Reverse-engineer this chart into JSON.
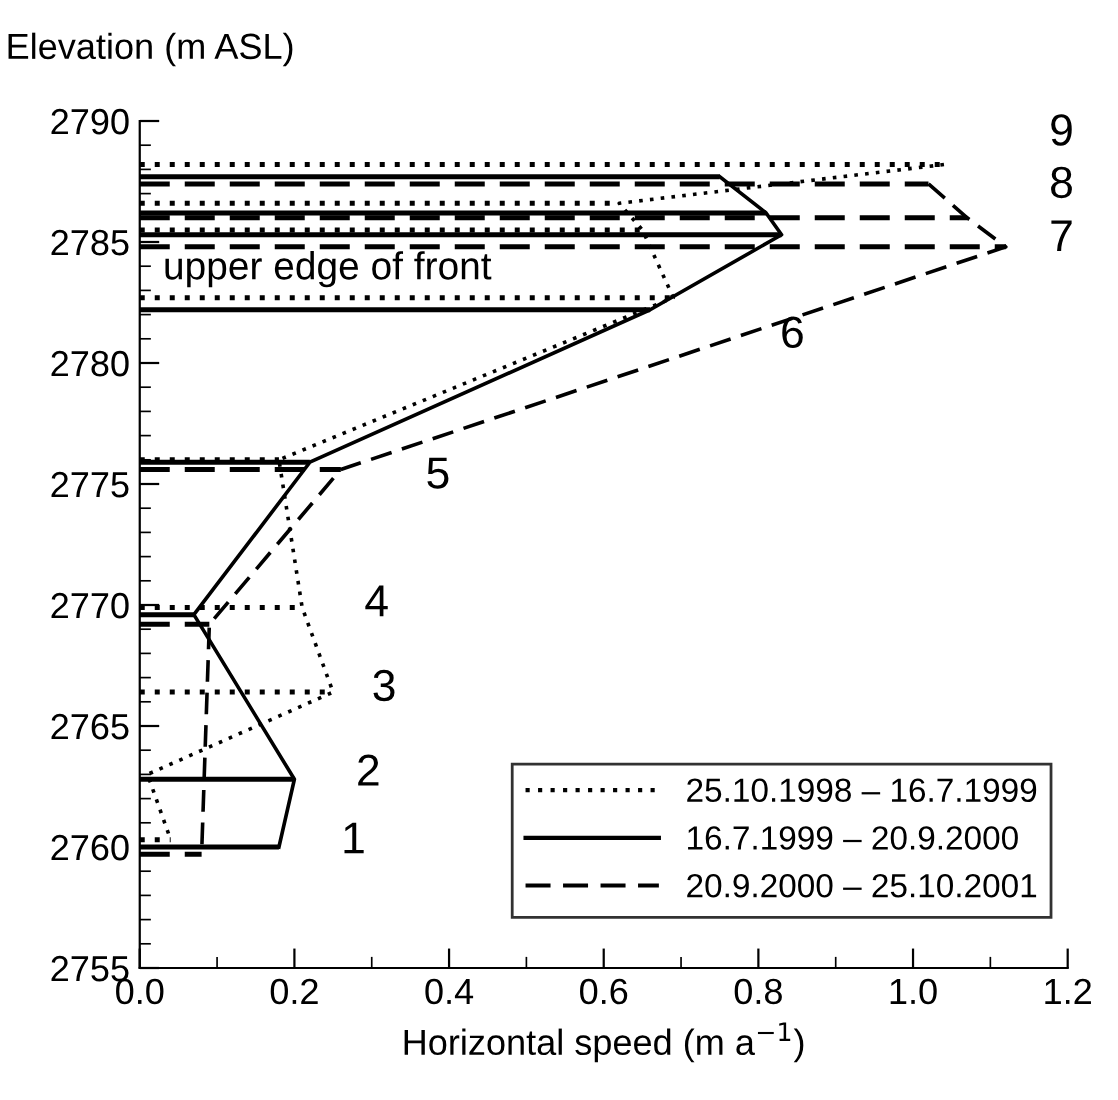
{
  "chart_data": {
    "type": "line",
    "xlabel": "Horizontal speed (m a$^{−1}$)",
    "ylabel": "Elevation (m ASL)",
    "xlim": [
      0,
      1.2
    ],
    "xticks": [
      {
        "value": 0,
        "label": "0.0"
      },
      {
        "value": 0.2,
        "label": "0.2"
      },
      {
        "value": 0.4,
        "label": "0.4"
      },
      {
        "value": 0.6,
        "label": "0.6"
      },
      {
        "value": 0.8,
        "label": "0.8"
      },
      {
        "value": 1.0,
        "label": "1.0"
      },
      {
        "value": 1.2,
        "label": "1.2"
      }
    ],
    "ylim": [
      2755,
      2790
    ],
    "yticks": [
      2755,
      2760,
      2765,
      2770,
      2775,
      2780,
      2785,
      2790
    ],
    "grid": false,
    "legend": "bottom right",
    "series": [
      {
        "name": "25.10.1998 – 16.7.1999",
        "color": "#000000",
        "line_style": "dotted",
        "x": [
          1.04,
          0.62,
          0.65,
          0.69,
          0.18,
          0.21,
          0.25,
          0.01,
          0.04
        ],
        "values": [
          2788.2,
          2786.6,
          2785.5,
          2782.7,
          2776.0,
          2769.9,
          2766.4,
          2763.0,
          2760.3
        ],
        "xerrors": [
          [
            0,
            1.04
          ],
          [
            0,
            0.62
          ],
          [
            0,
            0.65
          ],
          [
            0,
            0.69
          ],
          [
            0,
            0.18
          ],
          [
            0,
            0.21
          ],
          [
            0,
            0.25
          ],
          null,
          [
            0,
            0.04
          ]
        ]
      },
      {
        "name": "16.7.1999 – 20.9.2000",
        "color": "#000000",
        "line_style": "solid",
        "x": [
          0.75,
          0.81,
          0.83,
          0.66,
          0.22,
          0.07,
          0.2,
          0.18
        ],
        "values": [
          2787.7,
          2786.2,
          2785.3,
          2782.2,
          2775.9,
          2769.6,
          2762.8,
          2760.0
        ],
        "xerrors": [
          [
            0,
            0.75
          ],
          [
            0,
            0.81
          ],
          [
            0,
            0.83
          ],
          [
            0,
            0.66
          ],
          [
            0,
            0.22
          ],
          [
            0,
            0.07
          ],
          [
            0,
            0.2
          ],
          [
            0,
            0.18
          ]
        ]
      },
      {
        "name": "20.9.2000 – 25.10.2001",
        "color": "#000000",
        "line_style": "dashed",
        "x": [
          1.02,
          1.07,
          1.12,
          0.26,
          0.09,
          0.08
        ],
        "values": [
          2787.4,
          2786.0,
          2784.8,
          2775.6,
          2769.2,
          2759.7
        ],
        "xerrors": [
          [
            0,
            1.02
          ],
          [
            0,
            1.07
          ],
          [
            0,
            1.12
          ],
          [
            0,
            0.26
          ],
          [
            0,
            0.09
          ],
          [
            0,
            0.08
          ]
        ]
      }
    ],
    "annotations": [
      "upper edge of front",
      "1",
      "2",
      "3",
      "4",
      "5",
      "6",
      "7",
      "8",
      "9"
    ]
  }
}
